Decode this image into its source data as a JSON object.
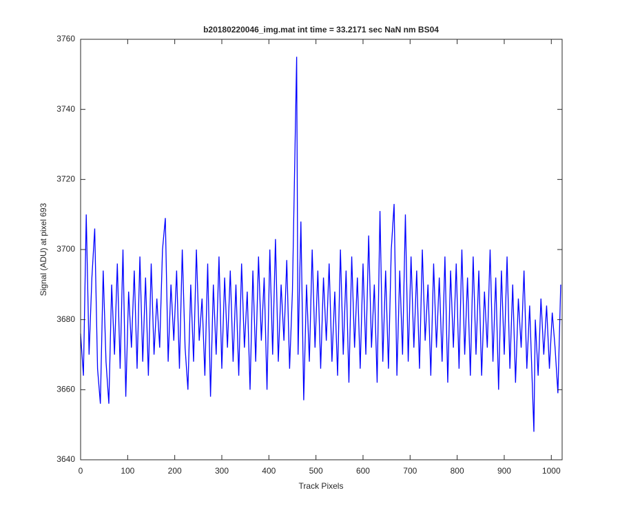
{
  "chart_data": {
    "type": "line",
    "title": "b20180220046_img.mat int time = 33.2171 sec  NaN nm BS04",
    "x_label": "Track Pixels",
    "y_label": "Signal (ADU) at pixel 693",
    "x": [
      0,
      6,
      12,
      18,
      24,
      30,
      36,
      42,
      48,
      54,
      60,
      66,
      72,
      78,
      84,
      90,
      96,
      102,
      108,
      114,
      120,
      126,
      132,
      138,
      144,
      150,
      156,
      162,
      168,
      174,
      180,
      186,
      192,
      198,
      204,
      210,
      216,
      222,
      228,
      234,
      240,
      246,
      252,
      258,
      264,
      270,
      276,
      282,
      288,
      294,
      300,
      306,
      312,
      318,
      324,
      330,
      336,
      342,
      348,
      354,
      360,
      366,
      372,
      378,
      384,
      390,
      396,
      402,
      408,
      414,
      420,
      426,
      432,
      438,
      444,
      450,
      459,
      462,
      468,
      474,
      480,
      486,
      492,
      498,
      504,
      510,
      516,
      522,
      528,
      534,
      540,
      546,
      552,
      558,
      564,
      570,
      576,
      582,
      588,
      594,
      600,
      606,
      612,
      618,
      624,
      630,
      636,
      642,
      648,
      654,
      660,
      666,
      672,
      678,
      684,
      690,
      696,
      702,
      708,
      714,
      720,
      726,
      732,
      738,
      744,
      750,
      756,
      762,
      768,
      774,
      780,
      786,
      792,
      798,
      804,
      810,
      816,
      822,
      828,
      834,
      840,
      846,
      852,
      858,
      864,
      870,
      876,
      882,
      888,
      894,
      900,
      906,
      912,
      918,
      924,
      930,
      936,
      942,
      948,
      954,
      963,
      966,
      972,
      978,
      984,
      990,
      996,
      1002,
      1008,
      1014,
      1020
    ],
    "series": [
      {
        "name": "signal",
        "color": "#0000ff",
        "values": [
          3676,
          3664,
          3710,
          3670,
          3692,
          3706,
          3666,
          3656,
          3694,
          3668,
          3656,
          3690,
          3670,
          3696,
          3666,
          3700,
          3658,
          3688,
          3672,
          3694,
          3666,
          3698,
          3668,
          3692,
          3664,
          3696,
          3670,
          3686,
          3672,
          3700,
          3709,
          3668,
          3690,
          3674,
          3694,
          3666,
          3700,
          3672,
          3660,
          3690,
          3668,
          3700,
          3674,
          3686,
          3664,
          3696,
          3658,
          3690,
          3670,
          3698,
          3666,
          3692,
          3672,
          3694,
          3668,
          3690,
          3664,
          3696,
          3672,
          3688,
          3660,
          3694,
          3668,
          3698,
          3674,
          3692,
          3660,
          3700,
          3670,
          3703,
          3668,
          3690,
          3674,
          3697,
          3666,
          3688,
          3755,
          3670,
          3708,
          3657,
          3690,
          3668,
          3700,
          3672,
          3694,
          3666,
          3692,
          3674,
          3696,
          3668,
          3688,
          3664,
          3700,
          3670,
          3694,
          3662,
          3698,
          3672,
          3692,
          3666,
          3696,
          3670,
          3704,
          3672,
          3690,
          3662,
          3711,
          3668,
          3694,
          3666,
          3700,
          3713,
          3664,
          3694,
          3670,
          3710,
          3668,
          3698,
          3672,
          3694,
          3666,
          3700,
          3674,
          3690,
          3664,
          3696,
          3672,
          3692,
          3668,
          3698,
          3662,
          3694,
          3672,
          3696,
          3666,
          3700,
          3670,
          3692,
          3664,
          3698,
          3670,
          3694,
          3664,
          3688,
          3672,
          3700,
          3668,
          3692,
          3660,
          3694,
          3670,
          3698,
          3666,
          3690,
          3662,
          3686,
          3672,
          3694,
          3666,
          3684,
          3648,
          3680,
          3664,
          3686,
          3670,
          3684,
          3666,
          3682,
          3672,
          3659,
          3690
        ]
      }
    ],
    "xlim": [
      0,
      1023
    ],
    "xticks": [
      0,
      100,
      200,
      300,
      400,
      500,
      600,
      700,
      800,
      900,
      1000
    ],
    "ylim": [
      3640,
      3760
    ],
    "yticks": [
      3640,
      3660,
      3680,
      3700,
      3720,
      3740,
      3760
    ]
  }
}
